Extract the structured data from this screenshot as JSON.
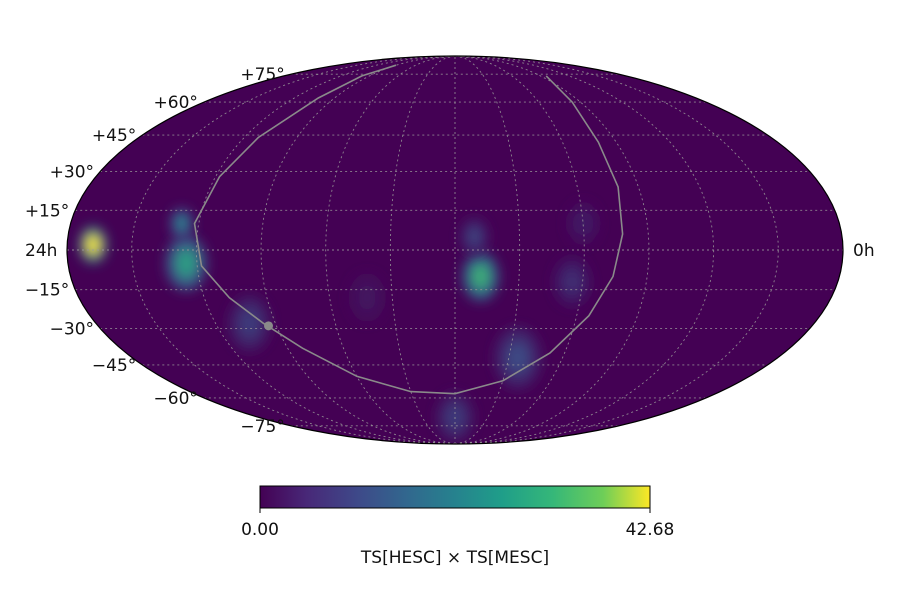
{
  "map": {
    "projection": "mollweide",
    "background_color": "#440154",
    "grid_color": "#9a9a9a",
    "plane_color": "#8a8a8a",
    "lat_grid": [
      -75,
      -60,
      -45,
      -30,
      -15,
      0,
      15,
      30,
      45,
      60,
      75
    ],
    "lon_grid_step_deg": 30,
    "lat_labels": [
      {
        "lat": 75,
        "text": "+75°"
      },
      {
        "lat": 60,
        "text": "+60°"
      },
      {
        "lat": 45,
        "text": "+45°"
      },
      {
        "lat": 30,
        "text": "+30°"
      },
      {
        "lat": 15,
        "text": "+15°"
      },
      {
        "lat": -15,
        "text": "−15°"
      },
      {
        "lat": -30,
        "text": "−30°"
      },
      {
        "lat": -45,
        "text": "−45°"
      },
      {
        "lat": -60,
        "text": "−60°"
      },
      {
        "lat": -75,
        "text": "−75°"
      }
    ],
    "ra_labels": {
      "left": "24h",
      "right": "0h"
    },
    "hotspots": [
      {
        "lon": -168,
        "lat": 2,
        "level": 1.0,
        "spread": 6
      },
      {
        "lon": -125,
        "lat": -5,
        "level": 0.55,
        "spread": 9
      },
      {
        "lon": -128,
        "lat": 10,
        "level": 0.45,
        "spread": 5
      },
      {
        "lon": 12,
        "lat": -10,
        "level": 0.62,
        "spread": 8
      },
      {
        "lon": 9,
        "lat": 5,
        "level": 0.2,
        "spread": 6
      },
      {
        "lon": -103,
        "lat": -28,
        "level": 0.18,
        "spread": 9
      },
      {
        "lon": 35,
        "lat": -42,
        "level": 0.22,
        "spread": 10
      },
      {
        "lon": 0,
        "lat": -70,
        "level": 0.18,
        "spread": 8
      },
      {
        "lon": 55,
        "lat": -12,
        "level": 0.14,
        "spread": 8
      },
      {
        "lon": 60,
        "lat": 10,
        "level": 0.08,
        "spread": 7
      },
      {
        "lon": -42,
        "lat": -18,
        "level": 0.06,
        "spread": 8
      }
    ],
    "galactic_plane": [
      [
        -90,
        81
      ],
      [
        -98,
        74
      ],
      [
        -102,
        62
      ],
      [
        -112,
        44
      ],
      [
        -118,
        28
      ],
      [
        -122,
        10
      ],
      [
        -118,
        -6
      ],
      [
        -108,
        -18
      ],
      [
        -96,
        -28
      ],
      [
        -82,
        -38
      ],
      [
        -60,
        -50
      ],
      [
        -30,
        -57
      ],
      [
        0,
        -58
      ],
      [
        30,
        -52
      ],
      [
        52,
        -40
      ],
      [
        66,
        -25
      ],
      [
        74,
        -10
      ],
      [
        78,
        6
      ],
      [
        80,
        24
      ],
      [
        80,
        42
      ],
      [
        84,
        60
      ],
      [
        96,
        74
      ]
    ],
    "galactic_center": {
      "lon": -94,
      "lat": -29
    }
  },
  "colorbar": {
    "min_label": "0.00",
    "max_label": "42.68",
    "label": "TS[HESC] × TS[MESC]",
    "colormap": "viridis"
  }
}
